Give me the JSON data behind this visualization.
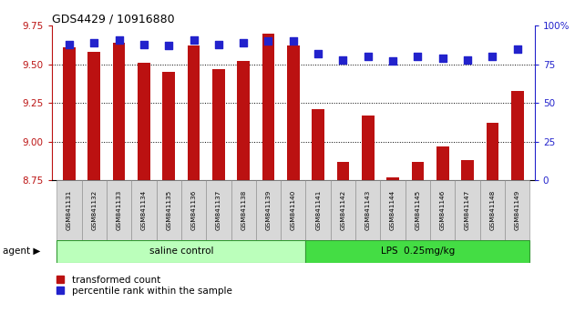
{
  "title": "GDS4429 / 10916880",
  "samples": [
    "GSM841131",
    "GSM841132",
    "GSM841133",
    "GSM841134",
    "GSM841135",
    "GSM841136",
    "GSM841137",
    "GSM841138",
    "GSM841139",
    "GSM841140",
    "GSM841141",
    "GSM841142",
    "GSM841143",
    "GSM841144",
    "GSM841145",
    "GSM841146",
    "GSM841147",
    "GSM841148",
    "GSM841149"
  ],
  "transformed_count": [
    9.61,
    9.58,
    9.64,
    9.51,
    9.45,
    9.62,
    9.47,
    9.52,
    9.7,
    9.62,
    9.21,
    8.87,
    9.17,
    8.77,
    8.87,
    8.97,
    8.88,
    9.12,
    9.33
  ],
  "percentile_rank": [
    88,
    89,
    91,
    88,
    87,
    91,
    88,
    89,
    90,
    90,
    82,
    78,
    80,
    77,
    80,
    79,
    78,
    80,
    85
  ],
  "group1_label": "saline control",
  "group1_count": 10,
  "group2_label": "LPS  0.25mg/kg",
  "group2_count": 9,
  "group_label_prefix": "agent",
  "ylim_left": [
    8.75,
    9.75
  ],
  "ylim_right": [
    0,
    100
  ],
  "yticks_left": [
    8.75,
    9.0,
    9.25,
    9.5,
    9.75
  ],
  "yticks_right": [
    0,
    25,
    50,
    75,
    100
  ],
  "bar_color": "#BB1111",
  "dot_color": "#2222CC",
  "group1_color": "#BBFFBB",
  "group2_color": "#44DD44",
  "left_axis_color": "#BB1111",
  "right_axis_color": "#2222CC",
  "background_color": "#FFFFFF",
  "bar_width": 0.5,
  "dot_size": 28
}
